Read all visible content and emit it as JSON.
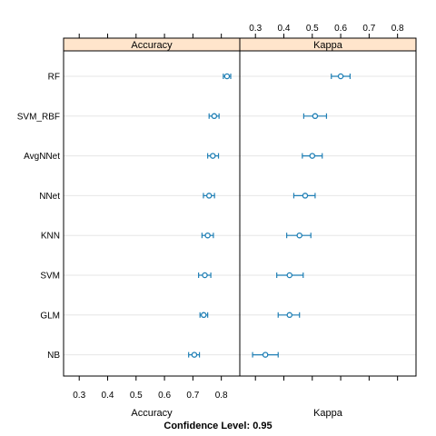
{
  "chart_data": {
    "type": "dotplot-ci",
    "categories": [
      "RF",
      "SVM_RBF",
      "AvgNNet",
      "NNet",
      "KNN",
      "SVM",
      "GLM",
      "NB"
    ],
    "tick_labels": [
      "0.3",
      "0.4",
      "0.5",
      "0.6",
      "0.7",
      "0.8"
    ],
    "ticks": [
      0.3,
      0.4,
      0.5,
      0.6,
      0.7,
      0.8
    ],
    "xlim": [
      0.245,
      0.865
    ],
    "panels": [
      {
        "strip": "Accuracy",
        "xlabel": "Accuracy",
        "estimates": [
          0.82,
          0.775,
          0.77,
          0.757,
          0.752,
          0.742,
          0.738,
          0.705
        ],
        "lower": [
          0.807,
          0.757,
          0.752,
          0.737,
          0.732,
          0.72,
          0.725,
          0.685
        ],
        "upper": [
          0.833,
          0.792,
          0.79,
          0.776,
          0.772,
          0.763,
          0.752,
          0.723
        ]
      },
      {
        "strip": "Kappa",
        "xlabel": "Kappa",
        "estimates": [
          0.6,
          0.51,
          0.5,
          0.475,
          0.455,
          0.42,
          0.42,
          0.335
        ],
        "lower": [
          0.567,
          0.47,
          0.465,
          0.435,
          0.41,
          0.375,
          0.38,
          0.29
        ],
        "upper": [
          0.633,
          0.55,
          0.535,
          0.51,
          0.495,
          0.468,
          0.455,
          0.38
        ]
      }
    ],
    "point_color": "#1f7fb5",
    "strip_color": "#ffe5cc",
    "gridlines": true,
    "footer": "Confidence Level: 0.95"
  }
}
